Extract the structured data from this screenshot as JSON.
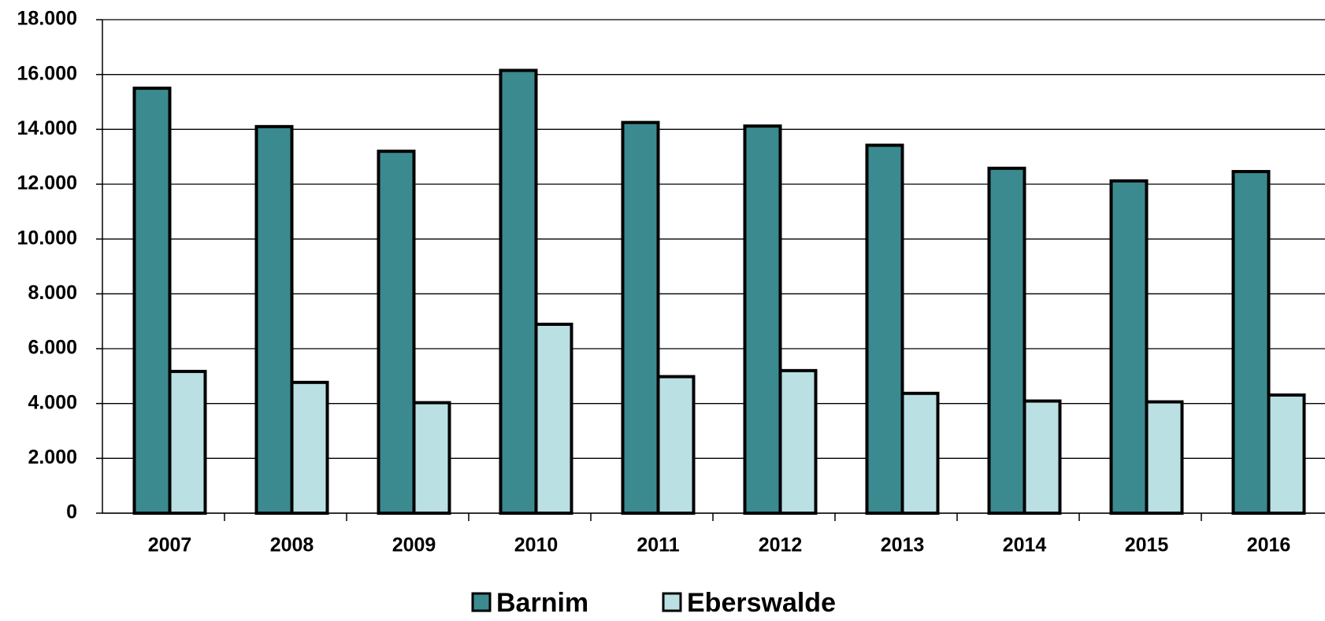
{
  "chart_data": {
    "type": "bar",
    "categories": [
      "2007",
      "2008",
      "2009",
      "2010",
      "2011",
      "2012",
      "2013",
      "2014",
      "2015",
      "2016"
    ],
    "series": [
      {
        "name": "Barnim",
        "color": "#3b8a8f",
        "values": [
          15500,
          14100,
          13200,
          16150,
          14250,
          14120,
          13420,
          12580,
          12120,
          12460
        ]
      },
      {
        "name": "Eberswalde",
        "color": "#bae0e4",
        "values": [
          5170,
          4770,
          4030,
          6890,
          4980,
          5200,
          4370,
          4090,
          4060,
          4310
        ]
      }
    ],
    "ylim": [
      0,
      18000
    ],
    "yticks": [
      0,
      {
        "value": 2000,
        "label": "2.000"
      },
      {
        "value": 4000,
        "label": "4.000"
      },
      {
        "value": 6000,
        "label": "6.000"
      },
      {
        "value": 8000,
        "label": "8.000"
      },
      {
        "value": 10000,
        "label": "10.000"
      },
      {
        "value": 12000,
        "label": "12.000"
      },
      {
        "value": 14000,
        "label": "14.000"
      },
      {
        "value": 16000,
        "label": "16.000"
      },
      {
        "value": 18000,
        "label": "18.000"
      }
    ],
    "grid": true,
    "legend": "bottom"
  }
}
